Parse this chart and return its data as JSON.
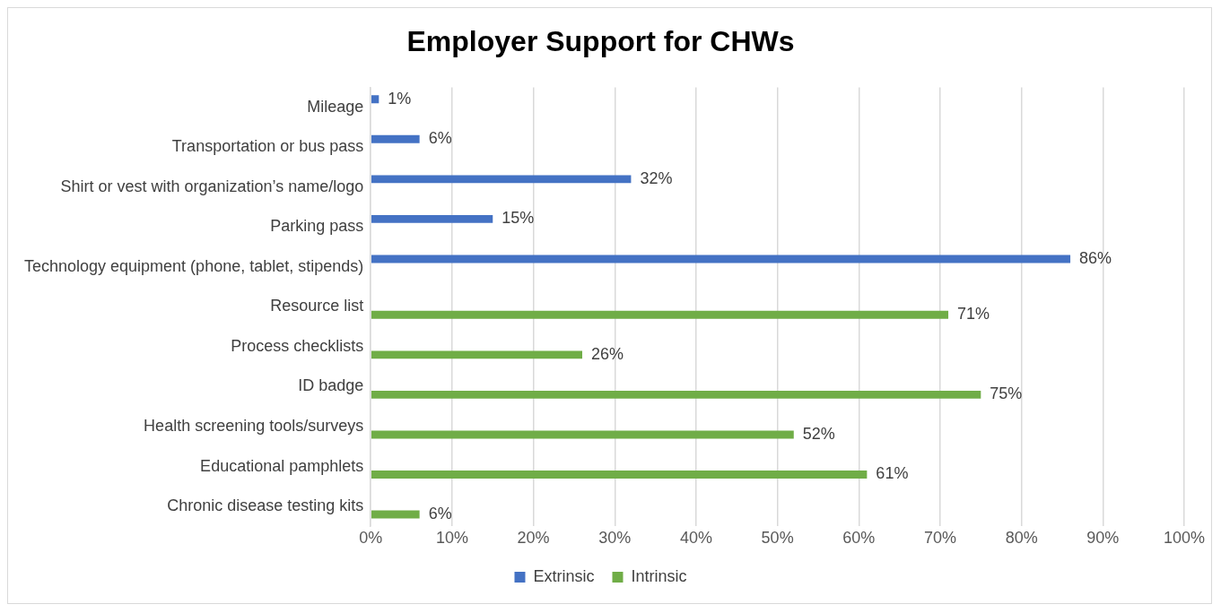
{
  "chart_data": {
    "type": "bar",
    "orientation": "horizontal",
    "title": "Employer Support for CHWs",
    "categories": [
      "Mileage",
      "Transportation or bus pass",
      "Shirt or vest with organization’s name/logo",
      "Parking pass",
      "Technology equipment (phone, tablet, stipends)",
      "Resource list",
      "Process checklists",
      "ID badge",
      "Health screening tools/surveys",
      "Educational pamphlets",
      "Chronic disease testing kits"
    ],
    "series": [
      {
        "name": "Extrinsic",
        "color": "#4472c4",
        "values": [
          1,
          6,
          32,
          15,
          86,
          null,
          null,
          null,
          null,
          null,
          null
        ],
        "value_labels": [
          "1%",
          "6%",
          "32%",
          "15%",
          "86%",
          null,
          null,
          null,
          null,
          null,
          null
        ]
      },
      {
        "name": "Intrinsic",
        "color": "#70ad47",
        "values": [
          null,
          null,
          null,
          null,
          null,
          71,
          26,
          75,
          52,
          61,
          6
        ],
        "value_labels": [
          null,
          null,
          null,
          null,
          null,
          "71%",
          "26%",
          "75%",
          "52%",
          "61%",
          "6%"
        ]
      }
    ],
    "xlim": [
      0,
      100
    ],
    "xticks": [
      {
        "value": 0,
        "label": "0%"
      },
      {
        "value": 10,
        "label": "10%"
      },
      {
        "value": 20,
        "label": "20%"
      },
      {
        "value": 30,
        "label": "30%"
      },
      {
        "value": 40,
        "label": "40%"
      },
      {
        "value": 50,
        "label": "50%"
      },
      {
        "value": 60,
        "label": "60%"
      },
      {
        "value": 70,
        "label": "70%"
      },
      {
        "value": 80,
        "label": "80%"
      },
      {
        "value": 90,
        "label": "90%"
      },
      {
        "value": 100,
        "label": "100%"
      }
    ],
    "grid": "x",
    "legend": "bottom"
  }
}
